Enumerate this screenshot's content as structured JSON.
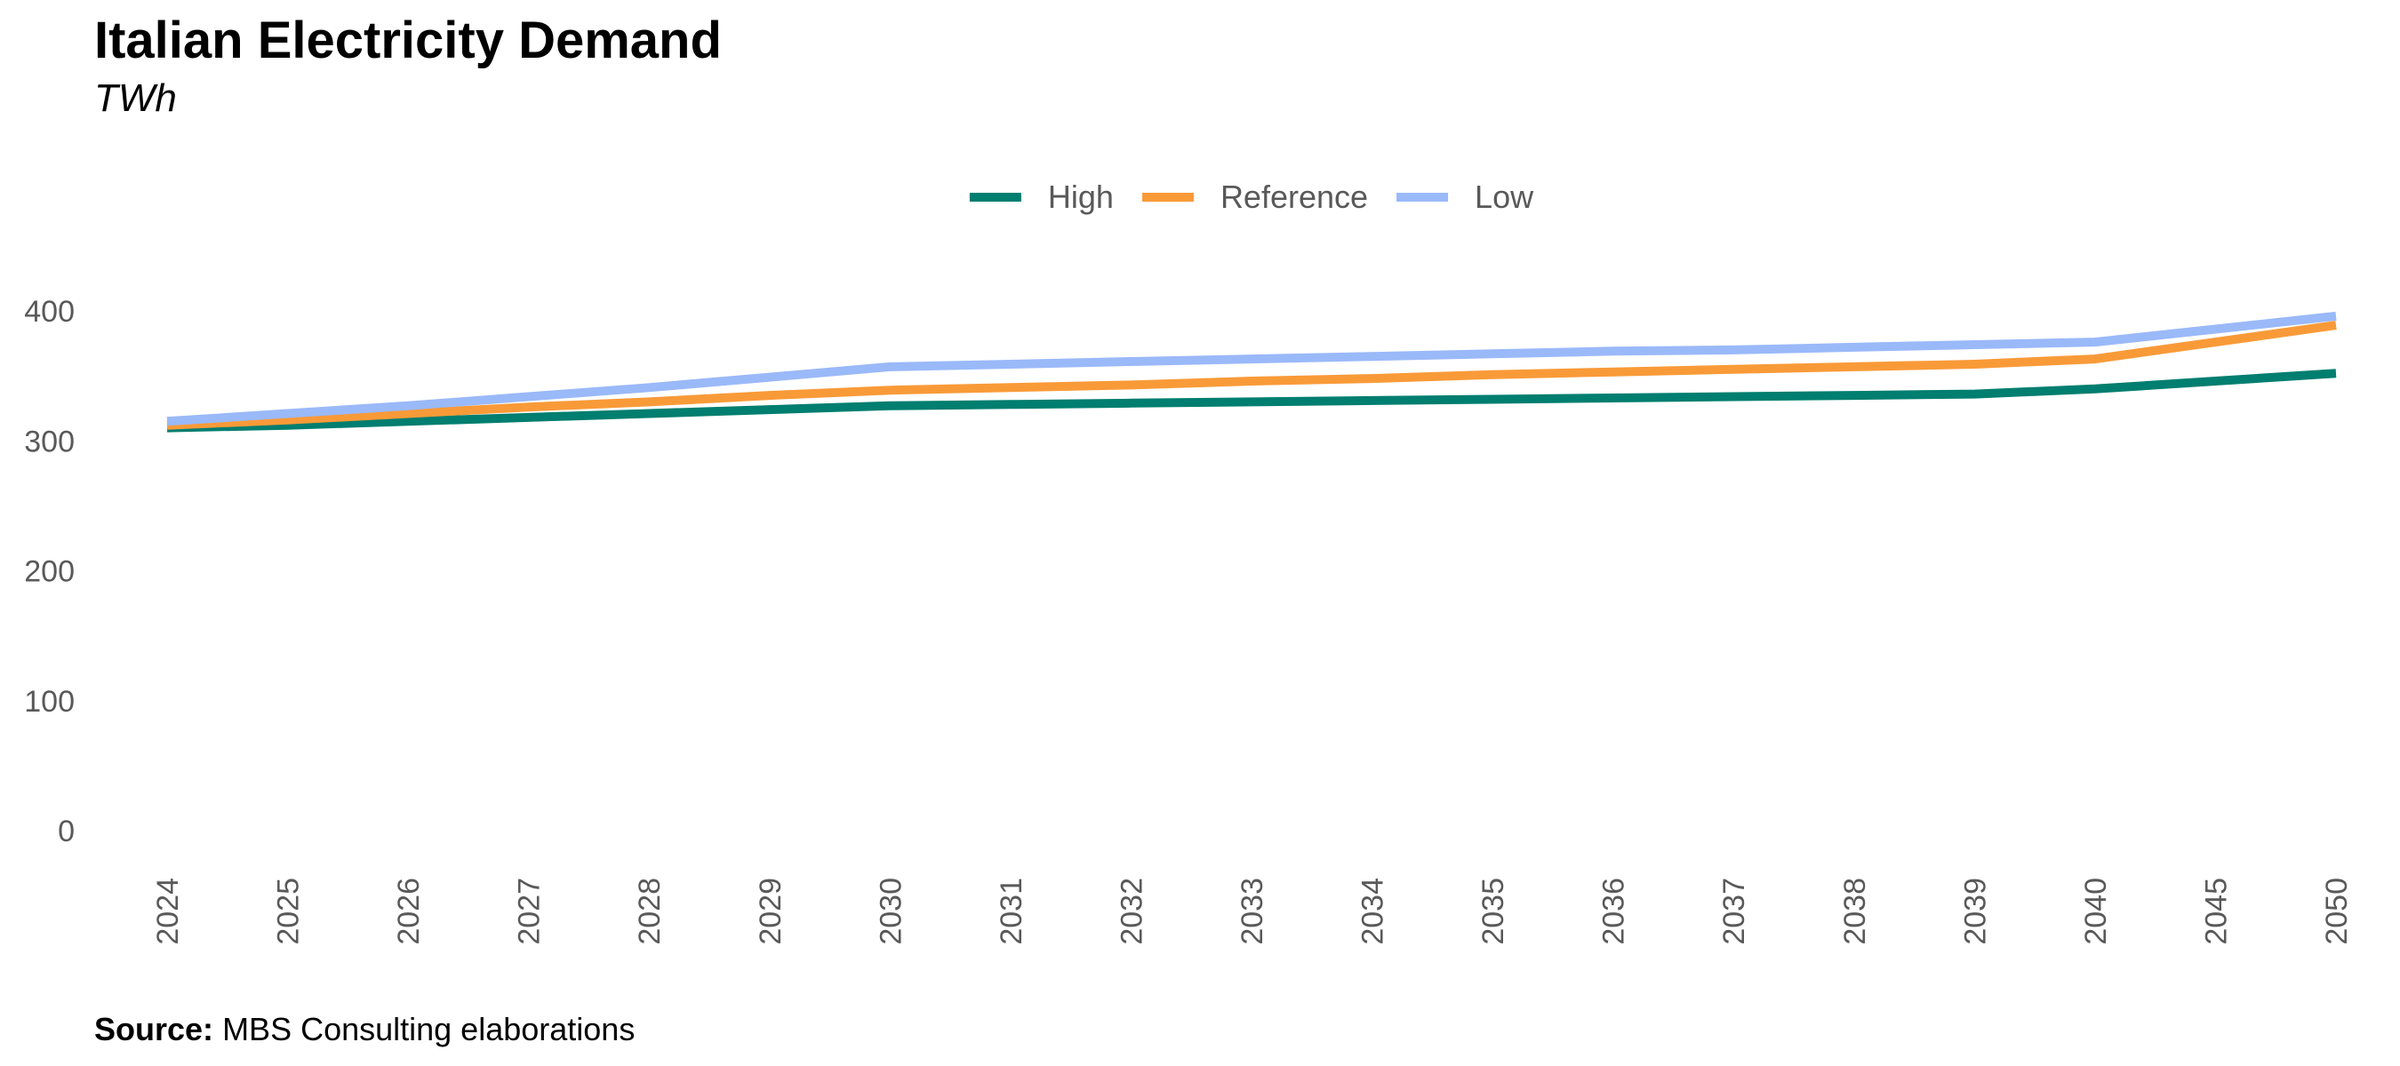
{
  "header": {
    "title": "Italian Electricity Demand",
    "subtitle": "TWh"
  },
  "footer": {
    "source_label": "Source:",
    "source_text": "MBS Consulting elaborations"
  },
  "chart_data": {
    "type": "line",
    "title": "Italian Electricity Demand",
    "subtitle": "TWh",
    "xlabel": "",
    "ylabel": "",
    "categories": [
      "2024",
      "2025",
      "2026",
      "2027",
      "2028",
      "2029",
      "2030",
      "2031",
      "2032",
      "2033",
      "2034",
      "2035",
      "2036",
      "2037",
      "2038",
      "2039",
      "2040",
      "2045",
      "2050"
    ],
    "ylim": [
      0,
      400
    ],
    "yticks": [
      0,
      100,
      200,
      300,
      400
    ],
    "grid": false,
    "legend_position": "top-center",
    "series": [
      {
        "name": "High",
        "color": "#007E6F",
        "values": [
          310,
          312,
          315,
          318,
          321,
          324,
          327,
          328,
          329,
          330,
          331,
          332,
          333,
          334,
          335,
          336,
          340,
          346,
          352
        ]
      },
      {
        "name": "Reference",
        "color": "#F99A38",
        "values": [
          312,
          316,
          321,
          326,
          330,
          335,
          339,
          341,
          343,
          346,
          348,
          351,
          353,
          355,
          357,
          359,
          363,
          376,
          389
        ]
      },
      {
        "name": "Low",
        "color": "#9AB9F9",
        "values": [
          315,
          321,
          327,
          334,
          341,
          349,
          357,
          359,
          361,
          363,
          365,
          367,
          369,
          370,
          372,
          374,
          376,
          386,
          396
        ]
      }
    ]
  }
}
